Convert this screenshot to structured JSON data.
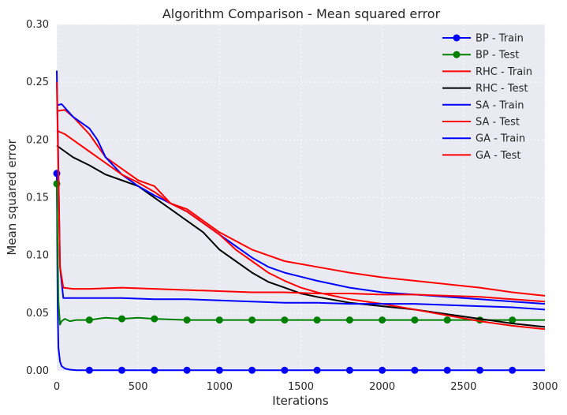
{
  "chart_data": {
    "type": "line",
    "title": "Algorithm Comparison - Mean squared error",
    "xlabel": "Iterations",
    "ylabel": "Mean squared error",
    "xlim": [
      0,
      3000
    ],
    "ylim": [
      0,
      0.3
    ],
    "xticks": [
      "0",
      "500",
      "1000",
      "1500",
      "2000",
      "2500",
      "3000"
    ],
    "yticks": [
      "0.00",
      "0.05",
      "0.10",
      "0.15",
      "0.20",
      "0.25",
      "0.30"
    ],
    "grid": true,
    "legend_position": "top-right",
    "series": [
      {
        "name": "BP - Train",
        "color": "#0000ff",
        "marker": "circle",
        "x": [
          0,
          5,
          10,
          20,
          30,
          50,
          80,
          120,
          200,
          400,
          600,
          800,
          1000,
          1200,
          1400,
          1600,
          1800,
          2000,
          2200,
          2400,
          2600,
          2800,
          3000
        ],
        "y": [
          0.171,
          0.06,
          0.02,
          0.008,
          0.004,
          0.002,
          0.001,
          0.0005,
          0.0005,
          0.0005,
          0.0005,
          0.0005,
          0.0005,
          0.0005,
          0.0005,
          0.0005,
          0.0005,
          0.0005,
          0.0005,
          0.0005,
          0.0005,
          0.0005,
          0.0005
        ],
        "markers_x": [
          0,
          200,
          400,
          600,
          800,
          1000,
          1200,
          1400,
          1600,
          1800,
          2000,
          2200,
          2400,
          2600,
          2800
        ]
      },
      {
        "name": "BP - Test",
        "color": "#008000",
        "marker": "circle",
        "x": [
          0,
          10,
          20,
          30,
          50,
          80,
          120,
          200,
          300,
          400,
          500,
          600,
          800,
          1000,
          1200,
          1400,
          1600,
          1800,
          2000,
          2200,
          2400,
          2600,
          2800,
          3000
        ],
        "y": [
          0.162,
          0.06,
          0.04,
          0.043,
          0.045,
          0.043,
          0.044,
          0.044,
          0.046,
          0.045,
          0.046,
          0.045,
          0.044,
          0.044,
          0.044,
          0.044,
          0.044,
          0.044,
          0.044,
          0.044,
          0.044,
          0.044,
          0.044,
          0.044
        ],
        "markers_x": [
          0,
          200,
          400,
          600,
          800,
          1000,
          1200,
          1400,
          1600,
          1800,
          2000,
          2200,
          2400,
          2600,
          2800
        ]
      },
      {
        "name": "RHC - Train",
        "color": "#ff0000",
        "x": [
          0,
          50,
          100,
          200,
          300,
          400,
          500,
          600,
          700,
          800,
          900,
          1000,
          1200,
          1400,
          1600,
          1800,
          2000,
          2200,
          2400,
          2600,
          2800,
          3000
        ],
        "y": [
          0.225,
          0.226,
          0.22,
          0.205,
          0.185,
          0.175,
          0.165,
          0.16,
          0.145,
          0.14,
          0.13,
          0.12,
          0.105,
          0.095,
          0.09,
          0.085,
          0.081,
          0.078,
          0.075,
          0.072,
          0.068,
          0.065
        ]
      },
      {
        "name": "RHC - Test",
        "color": "#000000",
        "x": [
          0,
          50,
          100,
          200,
          300,
          400,
          500,
          600,
          700,
          800,
          900,
          1000,
          1100,
          1200,
          1300,
          1400,
          1500,
          1600,
          1800,
          2000,
          2200,
          2400,
          2600,
          2800,
          3000
        ],
        "y": [
          0.195,
          0.19,
          0.185,
          0.178,
          0.17,
          0.165,
          0.16,
          0.15,
          0.14,
          0.13,
          0.12,
          0.105,
          0.095,
          0.085,
          0.077,
          0.072,
          0.067,
          0.064,
          0.059,
          0.056,
          0.053,
          0.049,
          0.045,
          0.041,
          0.038
        ]
      },
      {
        "name": "SA - Train",
        "color": "#0000ff",
        "x": [
          0,
          30,
          100,
          200,
          250,
          300,
          400,
          500,
          600,
          700,
          800,
          900,
          1000,
          1100,
          1200,
          1300,
          1400,
          1600,
          1800,
          2000,
          2200,
          2400,
          2600,
          2800,
          3000
        ],
        "y": [
          0.23,
          0.231,
          0.22,
          0.21,
          0.2,
          0.185,
          0.17,
          0.16,
          0.152,
          0.145,
          0.138,
          0.128,
          0.118,
          0.108,
          0.098,
          0.09,
          0.085,
          0.078,
          0.072,
          0.068,
          0.066,
          0.064,
          0.062,
          0.06,
          0.058
        ]
      },
      {
        "name": "SA - Test",
        "color": "#ff0000",
        "x": [
          0,
          50,
          100,
          200,
          300,
          400,
          500,
          600,
          700,
          800,
          900,
          1000,
          1100,
          1200,
          1300,
          1400,
          1500,
          1600,
          1800,
          2000,
          2200,
          2400,
          2600,
          2800,
          3000
        ],
        "y": [
          0.208,
          0.205,
          0.2,
          0.19,
          0.18,
          0.17,
          0.163,
          0.155,
          0.145,
          0.138,
          0.128,
          0.118,
          0.105,
          0.095,
          0.085,
          0.078,
          0.072,
          0.068,
          0.062,
          0.058,
          0.053,
          0.048,
          0.043,
          0.039,
          0.036
        ]
      },
      {
        "name": "GA - Train",
        "color": "#0000ff",
        "x": [
          0,
          20,
          40,
          100,
          200,
          400,
          600,
          800,
          1000,
          1200,
          1400,
          1600,
          1800,
          2000,
          2200,
          2400,
          2600,
          2800,
          3000
        ],
        "y": [
          0.26,
          0.09,
          0.063,
          0.063,
          0.063,
          0.063,
          0.062,
          0.062,
          0.061,
          0.06,
          0.059,
          0.059,
          0.058,
          0.058,
          0.058,
          0.057,
          0.056,
          0.055,
          0.053
        ]
      },
      {
        "name": "GA - Test",
        "color": "#ff0000",
        "x": [
          0,
          20,
          40,
          100,
          200,
          400,
          600,
          800,
          1000,
          1200,
          1400,
          1600,
          1800,
          2000,
          2200,
          2400,
          2600,
          2800,
          3000
        ],
        "y": [
          0.25,
          0.09,
          0.072,
          0.071,
          0.071,
          0.072,
          0.071,
          0.07,
          0.069,
          0.068,
          0.068,
          0.067,
          0.067,
          0.066,
          0.066,
          0.065,
          0.064,
          0.062,
          0.06
        ]
      }
    ]
  }
}
